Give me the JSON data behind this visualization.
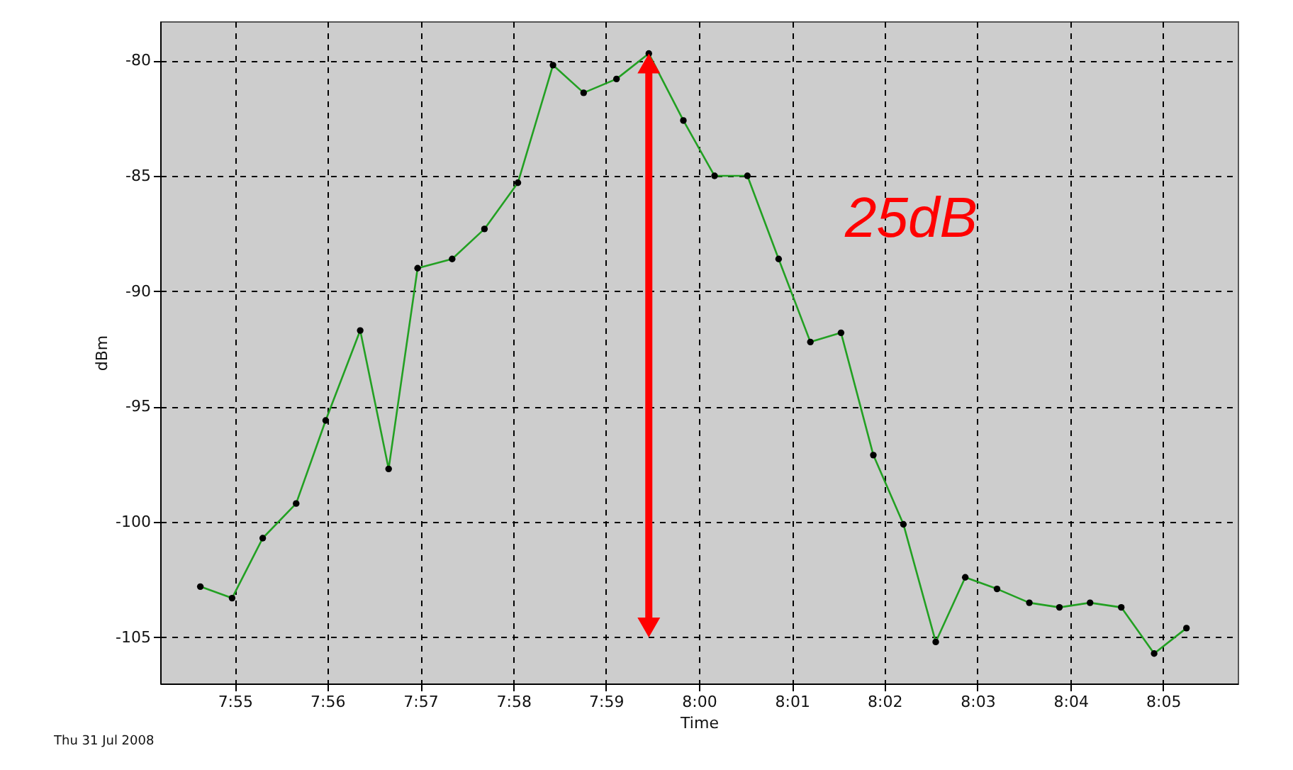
{
  "chart_data": {
    "type": "line",
    "xlabel": "Time",
    "ylabel": "dBm",
    "x": [
      7.9105,
      7.9162,
      7.9217,
      7.9277,
      7.933,
      7.9392,
      7.9443,
      7.9495,
      7.9557,
      7.9615,
      7.9675,
      7.9738,
      7.9793,
      7.9852,
      7.991,
      7.9972,
      8.0028,
      8.0087,
      8.0143,
      8.02,
      8.0255,
      8.0313,
      8.0367,
      8.0425,
      8.0478,
      8.0535,
      8.0593,
      8.0647,
      8.0702,
      8.0758,
      8.0817,
      8.0875
    ],
    "series": [
      {
        "color": "#22a022",
        "values": [
          -102.8,
          -103.3,
          -100.7,
          -99.2,
          -95.6,
          -91.7,
          -97.7,
          -89.0,
          -88.6,
          -87.3,
          -85.3,
          -80.2,
          -81.4,
          -80.8,
          -79.7,
          -82.6,
          -85.0,
          -85.0,
          -88.6,
          -92.2,
          -91.8,
          -97.1,
          -100.1,
          -105.2,
          -102.4,
          -102.9,
          -103.5,
          -103.7,
          -103.5,
          -103.7,
          -105.7,
          -104.6
        ]
      }
    ],
    "xlim": [
      7.9033,
      8.0967
    ],
    "ylim": [
      -107,
      -78.3
    ],
    "xticks": [
      {
        "value": 7.9167,
        "label": "7:55"
      },
      {
        "value": 7.9333,
        "label": "7:56"
      },
      {
        "value": 7.95,
        "label": "7:57"
      },
      {
        "value": 7.9667,
        "label": "7:58"
      },
      {
        "value": 7.9833,
        "label": "7:59"
      },
      {
        "value": 8.0,
        "label": "8:00"
      },
      {
        "value": 8.0167,
        "label": "8:01"
      },
      {
        "value": 8.0333,
        "label": "8:02"
      },
      {
        "value": 8.05,
        "label": "8:03"
      },
      {
        "value": 8.0667,
        "label": "8:04"
      },
      {
        "value": 8.0833,
        "label": "8:05"
      }
    ],
    "yticks": [
      -105,
      -100,
      -95,
      -90,
      -85,
      -80
    ],
    "grid": true,
    "marker": "circle",
    "line_style": "solid",
    "annotations": [
      "Thu 31 Jul 2008",
      "25dB"
    ]
  }
}
